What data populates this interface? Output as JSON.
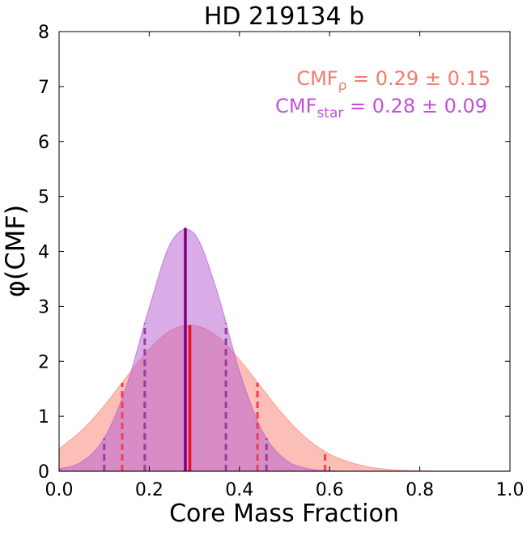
{
  "chart_data": {
    "type": "area",
    "title": "HD 219134 b",
    "xlabel": "Core Mass Fraction",
    "ylabel": "φ(CMF)",
    "xlim": [
      0,
      1
    ],
    "ylim": [
      0,
      8
    ],
    "xticks": [
      {
        "value": 0,
        "label": "0.0"
      },
      0.2,
      0.4,
      0.6,
      0.8,
      {
        "value": 1,
        "label": "1.0"
      }
    ],
    "yticks": [
      0,
      1,
      2,
      3,
      4,
      5,
      6,
      7,
      8
    ],
    "x": [
      0,
      0.05,
      0.1,
      0.15,
      0.2,
      0.25,
      0.3,
      0.35,
      0.4,
      0.45,
      0.5,
      0.55,
      0.6,
      0.65,
      0.7,
      0.75,
      0.8,
      0.85,
      0.9,
      0.95,
      1
    ],
    "series": [
      {
        "name": "CMF_rho",
        "color": "#fa8072",
        "line_color": "#e8101c",
        "dash_color": "#f04050",
        "text_color": "#f27a6e",
        "label": {
          "text": "CMF",
          "sub": "ρ",
          "rest": " = 0.29 ± 0.15"
        },
        "values": [
          0.41,
          0.74,
          1.19,
          1.72,
          2.22,
          2.57,
          2.65,
          2.46,
          2.03,
          1.51,
          1.0,
          0.59,
          0.31,
          0.15,
          0.06,
          0.02,
          0.01,
          0,
          0,
          0,
          0
        ],
        "median": {
          "x": 0.29,
          "height": 2.66
        },
        "quantiles": {
          "x": [
            0.14,
            0.44,
            0.59
          ],
          "heights": [
            1.61,
            1.61,
            0.36
          ]
        }
      },
      {
        "name": "CMF_star",
        "color": "#b45ad2",
        "line_color": "#800080",
        "dash_color": "#9b3b9b",
        "text_color": "#c050dc",
        "label": {
          "text": "CMF",
          "sub": "star",
          "rest": " = 0.28 ± 0.09"
        },
        "values": [
          0.04,
          0.17,
          0.6,
          1.56,
          2.98,
          4.19,
          4.32,
          3.28,
          1.82,
          0.74,
          0.22,
          0.05,
          0.01,
          0,
          0,
          0,
          0,
          0,
          0,
          0,
          0
        ],
        "median": {
          "x": 0.28,
          "height": 4.43
        },
        "quantiles": {
          "x": [
            0.1,
            0.19,
            0.37,
            0.46
          ],
          "heights": [
            0.6,
            2.69,
            2.69,
            0.6
          ]
        }
      }
    ]
  }
}
